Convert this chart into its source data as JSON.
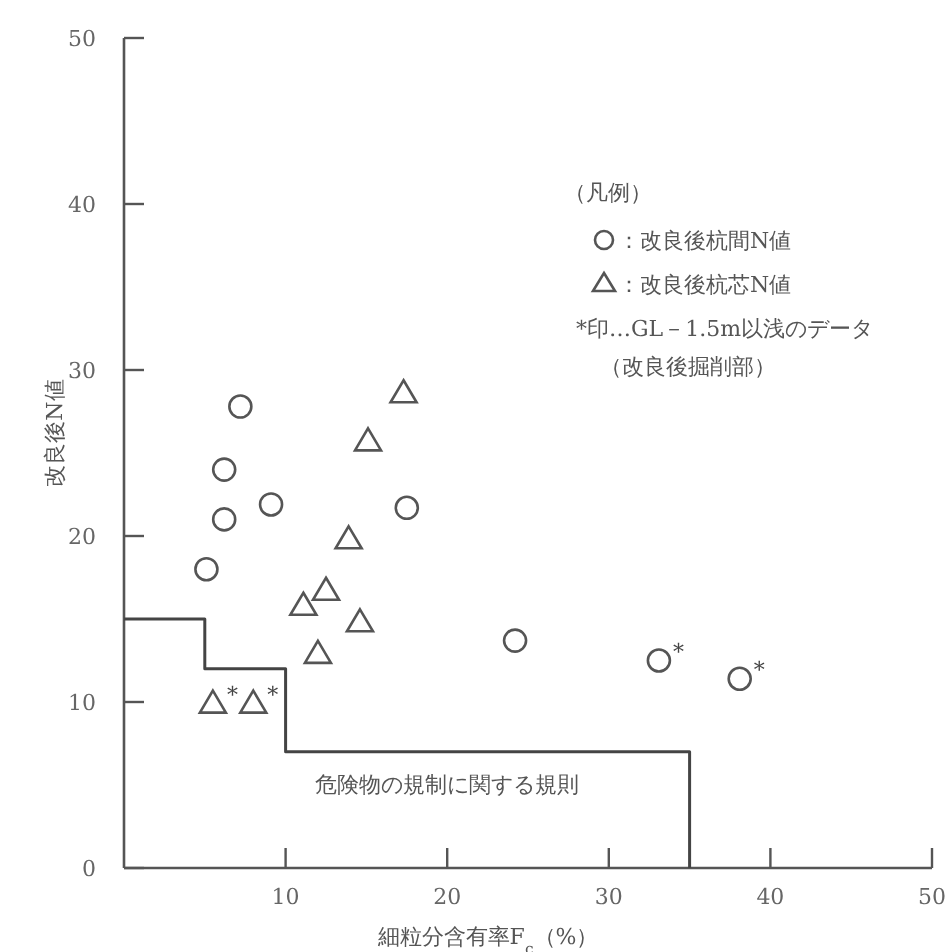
{
  "chart_data": {
    "type": "scatter",
    "xlabel": "細粒分含有率F$_{c}$（%）",
    "ylabel": "改良後N値",
    "legend_title": "（凡例）",
    "legend": "top right",
    "xlim": [
      0,
      50
    ],
    "ylim": [
      0,
      50
    ],
    "xticks": [
      10,
      20,
      30,
      40,
      50
    ],
    "yticks": [
      0,
      10,
      20,
      30,
      40,
      50
    ],
    "series": [
      {
        "name": "：改良後杭間N値",
        "marker": "circle",
        "color": "#555555",
        "x": [
          5.1,
          6.2,
          6.2,
          7.2,
          9.1,
          17.5,
          24.2,
          33.1,
          38.1
        ],
        "values": [
          18,
          21,
          24,
          27.8,
          21.9,
          21.7,
          13.7,
          12.5,
          11.4
        ],
        "value_labels": [
          null,
          null,
          null,
          null,
          null,
          null,
          null,
          "*",
          "*"
        ]
      },
      {
        "name": "：改良後杭芯N値",
        "marker": "triangle",
        "color": "#555555",
        "x": [
          5.5,
          8,
          11.1,
          12.5,
          12,
          13.9,
          14.6,
          15.1,
          17.3
        ],
        "values": [
          9.9,
          9.9,
          15.8,
          16.7,
          12.9,
          19.8,
          14.8,
          25.7,
          28.6
        ],
        "value_labels": [
          "*",
          "*",
          null,
          null,
          null,
          null,
          null,
          null,
          null
        ]
      },
      {
        "type": "step",
        "color": "#444444",
        "line_style": "solid",
        "x": [
          0,
          5,
          10,
          35
        ],
        "values": [
          15,
          12,
          7,
          0
        ]
      }
    ],
    "annotations": [
      "*印…GL－1.5m以浅のデータ",
      "（改良後掘削部）",
      {
        "text": "危険物の規制に関する規則",
        "x": 20,
        "y": 7
      }
    ]
  }
}
